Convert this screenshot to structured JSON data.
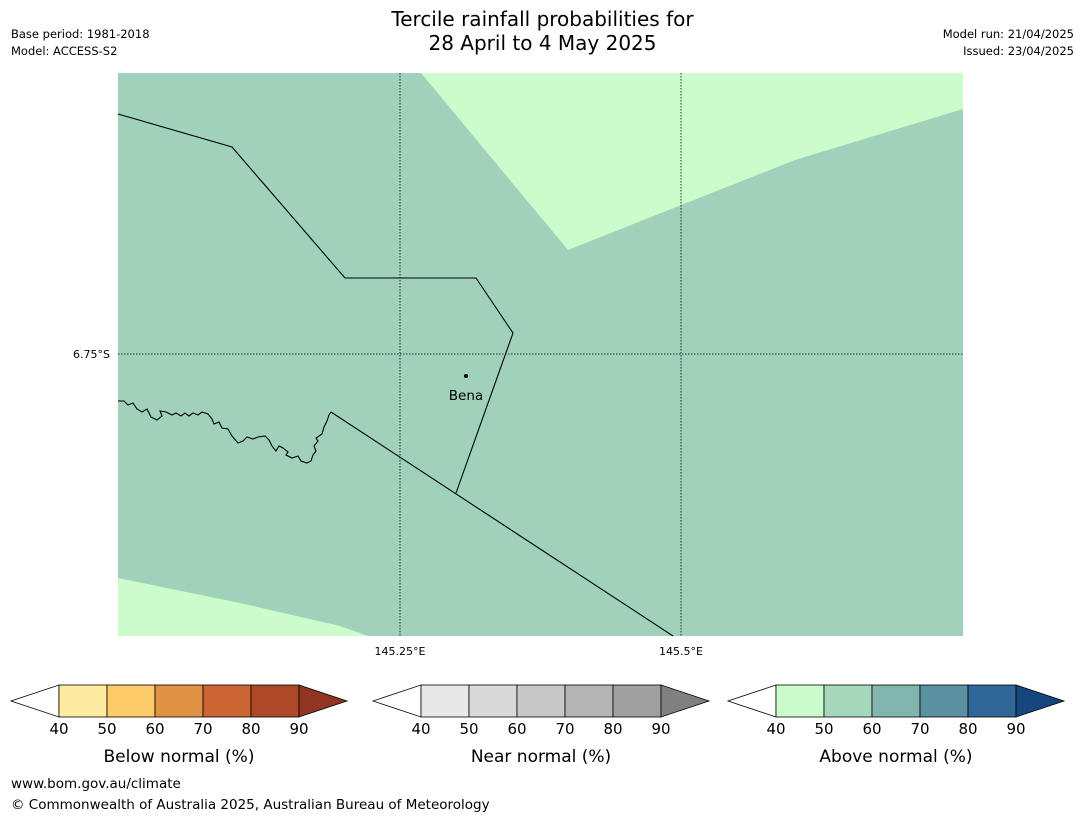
{
  "header": {
    "title_line1": "Tercile rainfall probabilities for",
    "title_line2": "28 April to 4 May 2025",
    "base_period": "Base period: 1981-2018",
    "model": "Model: ACCESS-S2",
    "model_run": "Model run: 21/04/2025",
    "issued": "Issued: 23/04/2025"
  },
  "map": {
    "lat_label": "6.75°S",
    "lon_labels": [
      "145.25°E",
      "145.5°E"
    ],
    "place_label": "Bena",
    "background_category": "Above normal 50-60%",
    "colors": {
      "above_50_60": "#a0d1bb",
      "above_40_50": "#ccfccb"
    }
  },
  "colorbars": [
    {
      "label": "Below normal (%)",
      "ticks": [
        "40",
        "50",
        "60",
        "70",
        "80",
        "90"
      ],
      "colors": [
        "#ffffff",
        "#fdeca0",
        "#fecb6a",
        "#e09144",
        "#cb6533",
        "#ad4828",
        "#913422"
      ]
    },
    {
      "label": "Near normal (%)",
      "ticks": [
        "40",
        "50",
        "60",
        "70",
        "80",
        "90"
      ],
      "colors": [
        "#ffffff",
        "#e8e8e8",
        "#d9d9d9",
        "#c8c8c8",
        "#b4b4b4",
        "#a0a0a0",
        "#808080"
      ]
    },
    {
      "label": "Above normal (%)",
      "ticks": [
        "40",
        "50",
        "60",
        "70",
        "80",
        "90"
      ],
      "colors": [
        "#ffffff",
        "#ccfccb",
        "#a6d9bc",
        "#82b5ae",
        "#5b90a0",
        "#306698",
        "#16467c"
      ]
    }
  ],
  "footer": {
    "url": "www.bom.gov.au/climate",
    "copyright": "© Commonwealth of Australia 2025, Australian Bureau of Meteorology"
  }
}
